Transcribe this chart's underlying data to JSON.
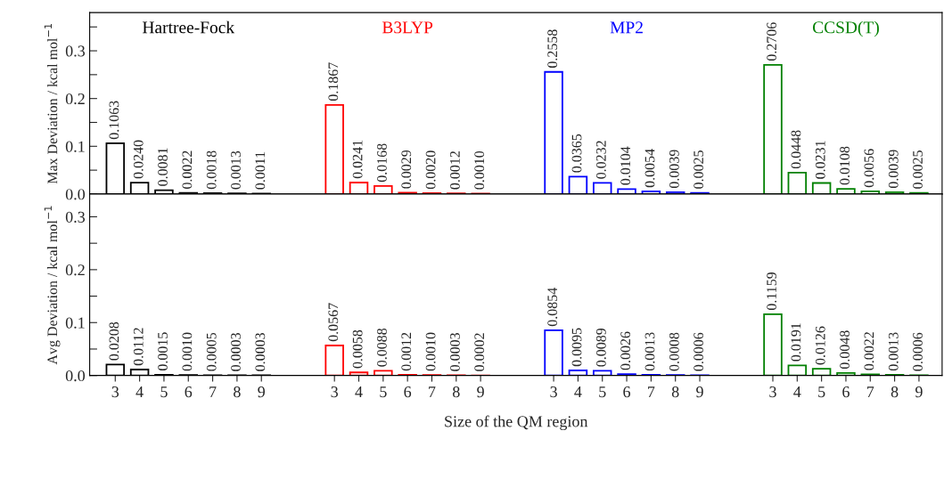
{
  "chart_data": [
    {
      "type": "bar",
      "ylabel": "Max Deviation / kcal mol$^{−1}$",
      "categories": [
        "3",
        "4",
        "5",
        "6",
        "7",
        "8",
        "9",
        null,
        null,
        "3",
        "4",
        "5",
        "6",
        "7",
        "8",
        "9",
        null,
        null,
        "3",
        "4",
        "5",
        "6",
        "7",
        "8",
        "9",
        null,
        null,
        "3",
        "4",
        "5",
        "6",
        "7",
        "8",
        "9"
      ],
      "ylim": [
        0,
        0.38
      ],
      "yticks": [
        {
          "value": 0,
          "label": "0.0"
        },
        {
          "value": 0.05,
          "label": null
        },
        0.1,
        {
          "value": 0.15,
          "label": null
        },
        0.2,
        {
          "value": 0.25,
          "label": null
        },
        0.3,
        {
          "value": 0.35,
          "label": null
        }
      ],
      "tick_labels": "y",
      "series": [
        {
          "name": "Hartree-Fock",
          "color": "#000000",
          "values": [
            0.1063,
            0.024,
            0.0081,
            0.0022,
            0.0018,
            0.0013,
            0.0011,
            null,
            null,
            null,
            null,
            null,
            null,
            null,
            null,
            null,
            null,
            null,
            null,
            null,
            null,
            null,
            null,
            null,
            null,
            null,
            null,
            null,
            null,
            null,
            null,
            null,
            null,
            null
          ],
          "value_labels": [
            "0.1063",
            "0.0240",
            "0.0081",
            "0.0022",
            "0.0018",
            "0.0013",
            "0.0011",
            null,
            null,
            null,
            null,
            null,
            null,
            null,
            null,
            null,
            null,
            null,
            null,
            null,
            null,
            null,
            null,
            null,
            null,
            null,
            null,
            null,
            null,
            null,
            null,
            null,
            null,
            null
          ]
        },
        {
          "name": "B3LYP",
          "color": "#ff0000",
          "values": [
            null,
            null,
            null,
            null,
            null,
            null,
            null,
            null,
            null,
            0.1867,
            0.0241,
            0.0168,
            0.0029,
            0.002,
            0.0012,
            0.001,
            null,
            null,
            null,
            null,
            null,
            null,
            null,
            null,
            null,
            null,
            null,
            null,
            null,
            null,
            null,
            null,
            null,
            null
          ],
          "value_labels": [
            null,
            null,
            null,
            null,
            null,
            null,
            null,
            null,
            null,
            "0.1867",
            "0.0241",
            "0.0168",
            "0.0029",
            "0.0020",
            "0.0012",
            "0.0010",
            null,
            null,
            null,
            null,
            null,
            null,
            null,
            null,
            null,
            null,
            null,
            null,
            null,
            null,
            null,
            null,
            null,
            null
          ]
        },
        {
          "name": "MP2",
          "color": "#0000ff",
          "values": [
            null,
            null,
            null,
            null,
            null,
            null,
            null,
            null,
            null,
            null,
            null,
            null,
            null,
            null,
            null,
            null,
            null,
            null,
            0.2558,
            0.0365,
            0.0232,
            0.0104,
            0.0054,
            0.0039,
            0.0025,
            null,
            null,
            null,
            null,
            null,
            null,
            null,
            null,
            null
          ],
          "value_labels": [
            null,
            null,
            null,
            null,
            null,
            null,
            null,
            null,
            null,
            null,
            null,
            null,
            null,
            null,
            null,
            null,
            null,
            null,
            "0.2558",
            "0.0365",
            "0.0232",
            "0.0104",
            "0.0054",
            "0.0039",
            "0.0025",
            null,
            null,
            null,
            null,
            null,
            null,
            null,
            null,
            null
          ]
        },
        {
          "name": "CCSD(T)",
          "color": "#008000",
          "values": [
            null,
            null,
            null,
            null,
            null,
            null,
            null,
            null,
            null,
            null,
            null,
            null,
            null,
            null,
            null,
            null,
            null,
            null,
            null,
            null,
            null,
            null,
            null,
            null,
            null,
            null,
            null,
            0.2706,
            0.0448,
            0.0231,
            0.0108,
            0.0056,
            0.0039,
            0.0025
          ],
          "value_labels": [
            null,
            null,
            null,
            null,
            null,
            null,
            null,
            null,
            null,
            null,
            null,
            null,
            null,
            null,
            null,
            null,
            null,
            null,
            null,
            null,
            null,
            null,
            null,
            null,
            null,
            null,
            null,
            "0.2706",
            "0.0448",
            "0.0231",
            "0.0108",
            "0.0056",
            "0.0039",
            "0.0025"
          ]
        }
      ]
    },
    {
      "type": "bar",
      "ylabel": "Avg Deviation / kcal mol$^{−1}$",
      "xlabel": "Size of the QM region",
      "categories": [
        "3",
        "4",
        "5",
        "6",
        "7",
        "8",
        "9",
        null,
        null,
        "3",
        "4",
        "5",
        "6",
        "7",
        "8",
        "9",
        null,
        null,
        "3",
        "4",
        "5",
        "6",
        "7",
        "8",
        "9",
        null,
        null,
        "3",
        "4",
        "5",
        "6",
        "7",
        "8",
        "9"
      ],
      "ylim": [
        0,
        0.343
      ],
      "yticks": [
        {
          "value": 0,
          "label": "0.0"
        },
        {
          "value": 0.05,
          "label": null
        },
        0.1,
        {
          "value": 0.15,
          "label": null
        },
        0.2,
        {
          "value": 0.25,
          "label": null
        },
        0.3
      ],
      "series": [
        {
          "color": "#000000",
          "values": [
            0.0208,
            0.0112,
            0.0015,
            0.001,
            0.0005,
            0.0003,
            0.0003,
            null,
            null,
            null,
            null,
            null,
            null,
            null,
            null,
            null,
            null,
            null,
            null,
            null,
            null,
            null,
            null,
            null,
            null,
            null,
            null,
            null,
            null,
            null,
            null,
            null,
            null,
            null
          ],
          "value_labels": [
            "0.0208",
            "0.0112",
            "0.0015",
            "0.0010",
            "0.0005",
            "0.0003",
            "0.0003",
            null,
            null,
            null,
            null,
            null,
            null,
            null,
            null,
            null,
            null,
            null,
            null,
            null,
            null,
            null,
            null,
            null,
            null,
            null,
            null,
            null,
            null,
            null,
            null,
            null,
            null,
            null
          ]
        },
        {
          "color": "#ff0000",
          "values": [
            null,
            null,
            null,
            null,
            null,
            null,
            null,
            null,
            null,
            0.0567,
            0.0058,
            0.0088,
            0.0012,
            0.001,
            0.0003,
            0.0002,
            null,
            null,
            null,
            null,
            null,
            null,
            null,
            null,
            null,
            null,
            null,
            null,
            null,
            null,
            null,
            null,
            null,
            null
          ],
          "value_labels": [
            null,
            null,
            null,
            null,
            null,
            null,
            null,
            null,
            null,
            "0.0567",
            "0.0058",
            "0.0088",
            "0.0012",
            "0.0010",
            "0.0003",
            "0.0002",
            null,
            null,
            null,
            null,
            null,
            null,
            null,
            null,
            null,
            null,
            null,
            null,
            null,
            null,
            null,
            null,
            null,
            null
          ]
        },
        {
          "color": "#0000ff",
          "values": [
            null,
            null,
            null,
            null,
            null,
            null,
            null,
            null,
            null,
            null,
            null,
            null,
            null,
            null,
            null,
            null,
            null,
            null,
            0.0854,
            0.0095,
            0.0089,
            0.0026,
            0.0013,
            0.0008,
            0.0006,
            null,
            null,
            null,
            null,
            null,
            null,
            null,
            null,
            null
          ],
          "value_labels": [
            null,
            null,
            null,
            null,
            null,
            null,
            null,
            null,
            null,
            null,
            null,
            null,
            null,
            null,
            null,
            null,
            null,
            null,
            "0.0854",
            "0.0095",
            "0.0089",
            "0.0026",
            "0.0013",
            "0.0008",
            "0.0006",
            null,
            null,
            null,
            null,
            null,
            null,
            null,
            null,
            null
          ]
        },
        {
          "color": "#008000",
          "values": [
            null,
            null,
            null,
            null,
            null,
            null,
            null,
            null,
            null,
            null,
            null,
            null,
            null,
            null,
            null,
            null,
            null,
            null,
            null,
            null,
            null,
            null,
            null,
            null,
            null,
            null,
            null,
            0.1159,
            0.0191,
            0.0126,
            0.0048,
            0.0022,
            0.0013,
            0.0006
          ],
          "value_labels": [
            null,
            null,
            null,
            null,
            null,
            null,
            null,
            null,
            null,
            null,
            null,
            null,
            null,
            null,
            null,
            null,
            null,
            null,
            null,
            null,
            null,
            null,
            null,
            null,
            null,
            null,
            null,
            "0.1159",
            "0.0191",
            "0.0126",
            "0.0048",
            "0.0022",
            "0.0013",
            "0.0006"
          ]
        }
      ]
    }
  ]
}
